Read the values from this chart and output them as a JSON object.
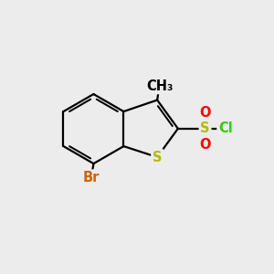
{
  "bg_color": "#ececec",
  "bond_color": "#000000",
  "bond_lw": 1.6,
  "S_color": "#b8b800",
  "O_color": "#ff0000",
  "Cl_color": "#33cc00",
  "Br_color": "#cc6600",
  "text_fontsize": 10.5,
  "figsize": [
    3.0,
    3.0
  ],
  "dpi": 100,
  "xlim": [
    0,
    10
  ],
  "ylim": [
    0,
    10
  ]
}
